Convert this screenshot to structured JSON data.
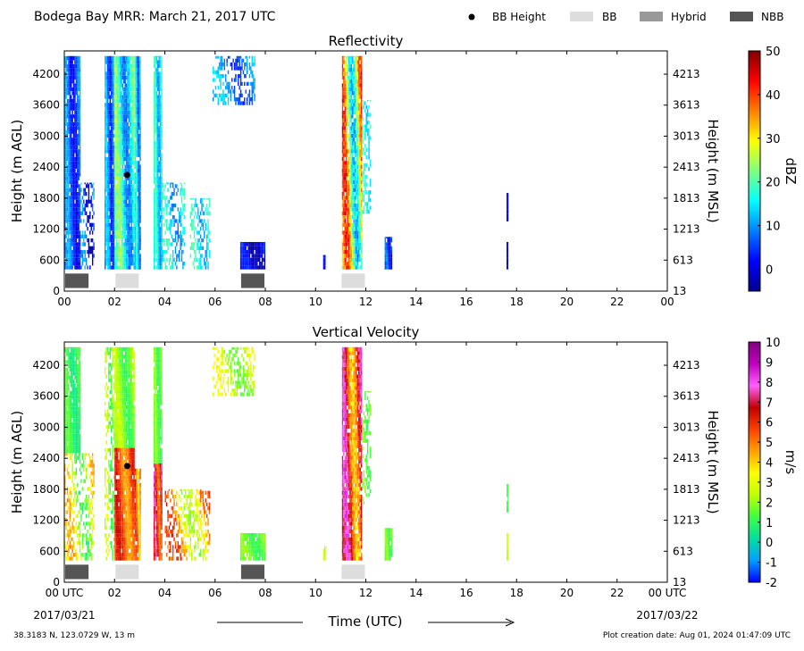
{
  "figure": {
    "title": "Bodega Bay MRR:  March 21, 2017 UTC",
    "legend": [
      {
        "label": "BB Height",
        "marker": "dot",
        "color": "#000000"
      },
      {
        "label": "BB",
        "marker": "patch",
        "color": "#dddddd"
      },
      {
        "label": "Hybrid",
        "marker": "patch",
        "color": "#999999"
      },
      {
        "label": "NBB",
        "marker": "patch",
        "color": "#555555"
      }
    ],
    "xlabel": "Time (UTC)",
    "start_date": "2017/03/21",
    "end_date": "2017/03/22",
    "location": "38.3183 N, 123.0729 W, 13 m",
    "creation": "Plot creation date: Aug 01, 2024 01:47:09 UTC"
  },
  "chart_data": [
    {
      "type": "heatmap",
      "title": "Reflectivity",
      "ylabel": "Height (m AGL)",
      "ylabel_right": "Height (m MSL)",
      "xlim": [
        0,
        24
      ],
      "ylim": [
        0,
        4650
      ],
      "x_ticks": [
        "00",
        "02",
        "04",
        "06",
        "08",
        "10",
        "12",
        "14",
        "16",
        "18",
        "20",
        "22",
        "00"
      ],
      "y_ticks": [
        0,
        600,
        1200,
        1800,
        2400,
        3000,
        3600,
        4200
      ],
      "y_ticks_right": [
        13,
        613,
        1213,
        1813,
        2413,
        3013,
        3613,
        4213
      ],
      "colorbar": {
        "label": "dBZ",
        "min": -5,
        "max": 50,
        "ticks": [
          0,
          10,
          20,
          30,
          40,
          50
        ],
        "colors": [
          "#00008f",
          "#0000ff",
          "#007fff",
          "#00ffff",
          "#7fff7f",
          "#ffff00",
          "#ff7f00",
          "#ff0000",
          "#7f0000"
        ]
      },
      "bb_height": [
        {
          "time": 2.5,
          "height": 2250
        }
      ],
      "bb_type_bars": [
        {
          "start": 0.0,
          "end": 1.0,
          "type": "NBB"
        },
        {
          "start": 2.0,
          "end": 3.0,
          "type": "BB"
        },
        {
          "start": 7.0,
          "end": 8.0,
          "type": "NBB"
        },
        {
          "start": 11.0,
          "end": 12.0,
          "type": "BB"
        }
      ],
      "precip_segments": [
        {
          "t0": 0.0,
          "t1": 0.65,
          "h0": 420,
          "h1": 4550,
          "vmin": 1,
          "vmax": 12,
          "sparse": false
        },
        {
          "t0": 0.65,
          "t1": 1.2,
          "h0": 420,
          "h1": 2100,
          "vmin": -3,
          "vmax": 12,
          "sparse": true
        },
        {
          "t0": 1.6,
          "t1": 2.0,
          "h0": 420,
          "h1": 4550,
          "vmin": 3,
          "vmax": 14,
          "sparse": false
        },
        {
          "t0": 2.0,
          "t1": 2.8,
          "h0": 420,
          "h1": 4550,
          "vmin": 8,
          "vmax": 24,
          "sparse": false
        },
        {
          "t0": 2.8,
          "t1": 3.05,
          "h0": 420,
          "h1": 4550,
          "vmin": 6,
          "vmax": 18,
          "sparse": false
        },
        {
          "t0": 3.55,
          "t1": 3.9,
          "h0": 420,
          "h1": 4550,
          "vmin": 10,
          "vmax": 20,
          "sparse": false
        },
        {
          "t0": 3.9,
          "t1": 4.8,
          "h0": 420,
          "h1": 2100,
          "vmin": 8,
          "vmax": 20,
          "sparse": true
        },
        {
          "t0": 5.0,
          "t1": 5.8,
          "h0": 420,
          "h1": 1800,
          "vmin": 10,
          "vmax": 20,
          "sparse": true
        },
        {
          "t0": 5.9,
          "t1": 7.6,
          "h0": 3600,
          "h1": 4550,
          "vmin": 4,
          "vmax": 14,
          "sparse": true
        },
        {
          "t0": 7.0,
          "t1": 8.0,
          "h0": 420,
          "h1": 950,
          "vmin": -4,
          "vmax": 4,
          "sparse": false
        },
        {
          "t0": 10.3,
          "t1": 10.4,
          "h0": 420,
          "h1": 700,
          "vmin": 0,
          "vmax": 4,
          "sparse": false
        },
        {
          "t0": 11.05,
          "t1": 11.85,
          "h0": 420,
          "h1": 4550,
          "vmin": 12,
          "vmax": 42,
          "sparse": false
        },
        {
          "t0": 11.85,
          "t1": 12.2,
          "h0": 1500,
          "h1": 3700,
          "vmin": 12,
          "vmax": 20,
          "sparse": true
        },
        {
          "t0": 12.75,
          "t1": 13.05,
          "h0": 420,
          "h1": 1050,
          "vmin": 0,
          "vmax": 10,
          "sparse": false
        },
        {
          "t0": 17.6,
          "t1": 17.68,
          "h0": 1350,
          "h1": 1900,
          "vmin": -2,
          "vmax": 2,
          "sparse": false
        },
        {
          "t0": 17.6,
          "t1": 17.66,
          "h0": 420,
          "h1": 950,
          "vmin": -2,
          "vmax": 2,
          "sparse": false
        }
      ]
    },
    {
      "type": "heatmap",
      "title": "Vertical Velocity",
      "ylabel": "Height (m AGL)",
      "ylabel_right": "Height (m MSL)",
      "xlim": [
        0,
        24
      ],
      "ylim": [
        0,
        4650
      ],
      "x_ticks": [
        "00 UTC",
        "02",
        "04",
        "06",
        "08",
        "10",
        "12",
        "14",
        "16",
        "18",
        "20",
        "22",
        "00 UTC"
      ],
      "y_ticks": [
        0,
        600,
        1200,
        1800,
        2400,
        3000,
        3600,
        4200
      ],
      "y_ticks_right": [
        13,
        613,
        1213,
        1813,
        2413,
        3013,
        3613,
        4213
      ],
      "colorbar": {
        "label": "m/s",
        "min": -2,
        "max": 10,
        "ticks": [
          -2,
          -1,
          0,
          1,
          2,
          3,
          4,
          5,
          6,
          7,
          8,
          9,
          10
        ],
        "colors": [
          "#0000ff",
          "#00a0ff",
          "#00e0a0",
          "#40ff40",
          "#c0ff00",
          "#ffff00",
          "#ffa000",
          "#ff4000",
          "#c00000",
          "#ff60ff",
          "#c000c0",
          "#800080"
        ]
      },
      "bb_height": [
        {
          "time": 2.5,
          "height": 2250
        }
      ],
      "bb_type_bars": [
        {
          "start": 0.0,
          "end": 1.0,
          "type": "NBB"
        },
        {
          "start": 2.0,
          "end": 3.0,
          "type": "BB"
        },
        {
          "start": 7.0,
          "end": 8.0,
          "type": "NBB"
        },
        {
          "start": 11.0,
          "end": 12.0,
          "type": "BB"
        }
      ],
      "precip_segments": [
        {
          "t0": 0.0,
          "t1": 0.65,
          "h0": 2500,
          "h1": 4550,
          "vmin": 0.5,
          "vmax": 1.5,
          "sparse": false
        },
        {
          "t0": 0.0,
          "t1": 1.2,
          "h0": 420,
          "h1": 2500,
          "vmin": 1,
          "vmax": 4.5,
          "sparse": true
        },
        {
          "t0": 1.6,
          "t1": 2.0,
          "h0": 420,
          "h1": 4550,
          "vmin": 1,
          "vmax": 3,
          "sparse": true
        },
        {
          "t0": 2.0,
          "t1": 2.8,
          "h0": 2600,
          "h1": 4550,
          "vmin": 1,
          "vmax": 2.5,
          "sparse": false
        },
        {
          "t0": 2.0,
          "t1": 2.8,
          "h0": 420,
          "h1": 2600,
          "vmin": 4.5,
          "vmax": 6.5,
          "sparse": false
        },
        {
          "t0": 2.8,
          "t1": 3.05,
          "h0": 420,
          "h1": 2200,
          "vmin": 3.5,
          "vmax": 6,
          "sparse": false
        },
        {
          "t0": 3.55,
          "t1": 3.9,
          "h0": 2300,
          "h1": 4550,
          "vmin": 1,
          "vmax": 2,
          "sparse": false
        },
        {
          "t0": 3.55,
          "t1": 3.9,
          "h0": 420,
          "h1": 2300,
          "vmin": 5,
          "vmax": 7.5,
          "sparse": false
        },
        {
          "t0": 4.0,
          "t1": 5.8,
          "h0": 420,
          "h1": 1800,
          "vmin": 2,
          "vmax": 6,
          "sparse": true
        },
        {
          "t0": 5.9,
          "t1": 7.6,
          "h0": 3600,
          "h1": 4550,
          "vmin": 1.5,
          "vmax": 3.5,
          "sparse": true
        },
        {
          "t0": 7.0,
          "t1": 8.0,
          "h0": 420,
          "h1": 950,
          "vmin": 1,
          "vmax": 2,
          "sparse": false
        },
        {
          "t0": 10.3,
          "t1": 10.4,
          "h0": 420,
          "h1": 700,
          "vmin": 2,
          "vmax": 3,
          "sparse": false
        },
        {
          "t0": 11.05,
          "t1": 11.85,
          "h0": 420,
          "h1": 4550,
          "vmin": 4,
          "vmax": 8,
          "sparse": false
        },
        {
          "t0": 11.85,
          "t1": 12.2,
          "h0": 1500,
          "h1": 3700,
          "vmin": 1,
          "vmax": 2,
          "sparse": true
        },
        {
          "t0": 12.75,
          "t1": 13.05,
          "h0": 420,
          "h1": 1050,
          "vmin": 1,
          "vmax": 2,
          "sparse": false
        },
        {
          "t0": 17.6,
          "t1": 17.68,
          "h0": 1350,
          "h1": 1900,
          "vmin": 1,
          "vmax": 1.5,
          "sparse": false
        },
        {
          "t0": 17.6,
          "t1": 17.66,
          "h0": 420,
          "h1": 950,
          "vmin": 2,
          "vmax": 3,
          "sparse": false
        }
      ]
    }
  ]
}
